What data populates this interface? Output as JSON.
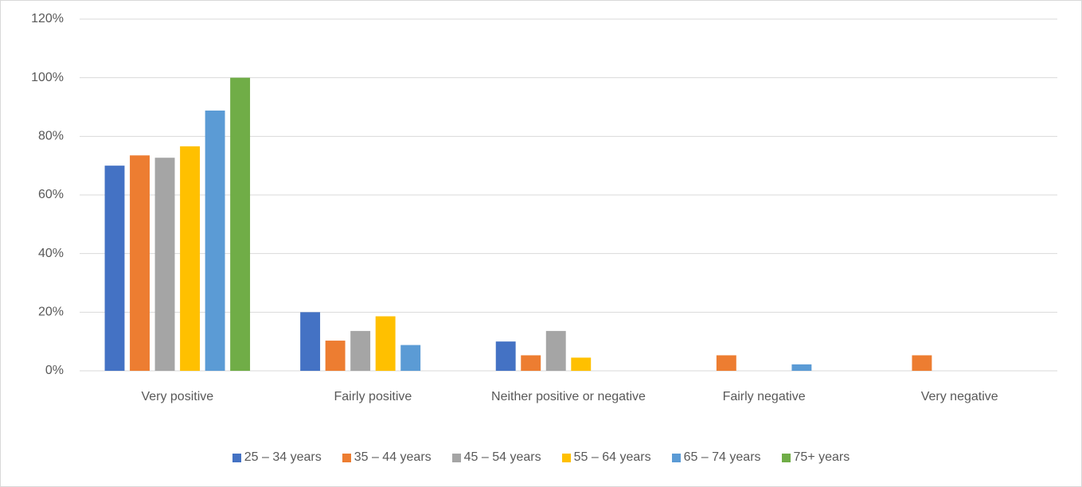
{
  "chart_data": {
    "type": "bar",
    "categories": [
      "Very positive",
      "Fairly positive",
      "Neither positive or negative",
      "Fairly negative",
      "Very negative"
    ],
    "series": [
      {
        "name": "25 – 34 years",
        "color": "#4472c4",
        "values": [
          70,
          20,
          10,
          0,
          0
        ]
      },
      {
        "name": "35 – 44 years",
        "color": "#ed7d31",
        "values": [
          73.5,
          10.3,
          5.3,
          5.3,
          5.3
        ]
      },
      {
        "name": "45 – 54 years",
        "color": "#a5a5a5",
        "values": [
          72.7,
          13.6,
          13.6,
          0,
          0
        ]
      },
      {
        "name": "55 – 64 years",
        "color": "#ffc000",
        "values": [
          76.6,
          18.6,
          4.5,
          0,
          0
        ]
      },
      {
        "name": "65 – 74 years",
        "color": "#5b9bd5",
        "values": [
          88.8,
          8.8,
          0,
          2.2,
          0
        ]
      },
      {
        "name": "75+ years",
        "color": "#70ad47",
        "values": [
          100,
          0,
          0,
          0,
          0
        ]
      }
    ],
    "ylim": [
      0,
      120
    ],
    "yticks": [
      {
        "value": 0,
        "label": "0%"
      },
      {
        "value": 20,
        "label": "20%"
      },
      {
        "value": 40,
        "label": "40%"
      },
      {
        "value": 60,
        "label": "60%"
      },
      {
        "value": 80,
        "label": "80%"
      },
      {
        "value": 100,
        "label": "100%"
      },
      {
        "value": 120,
        "label": "120%"
      }
    ],
    "grid": true,
    "legend": "bottom"
  }
}
